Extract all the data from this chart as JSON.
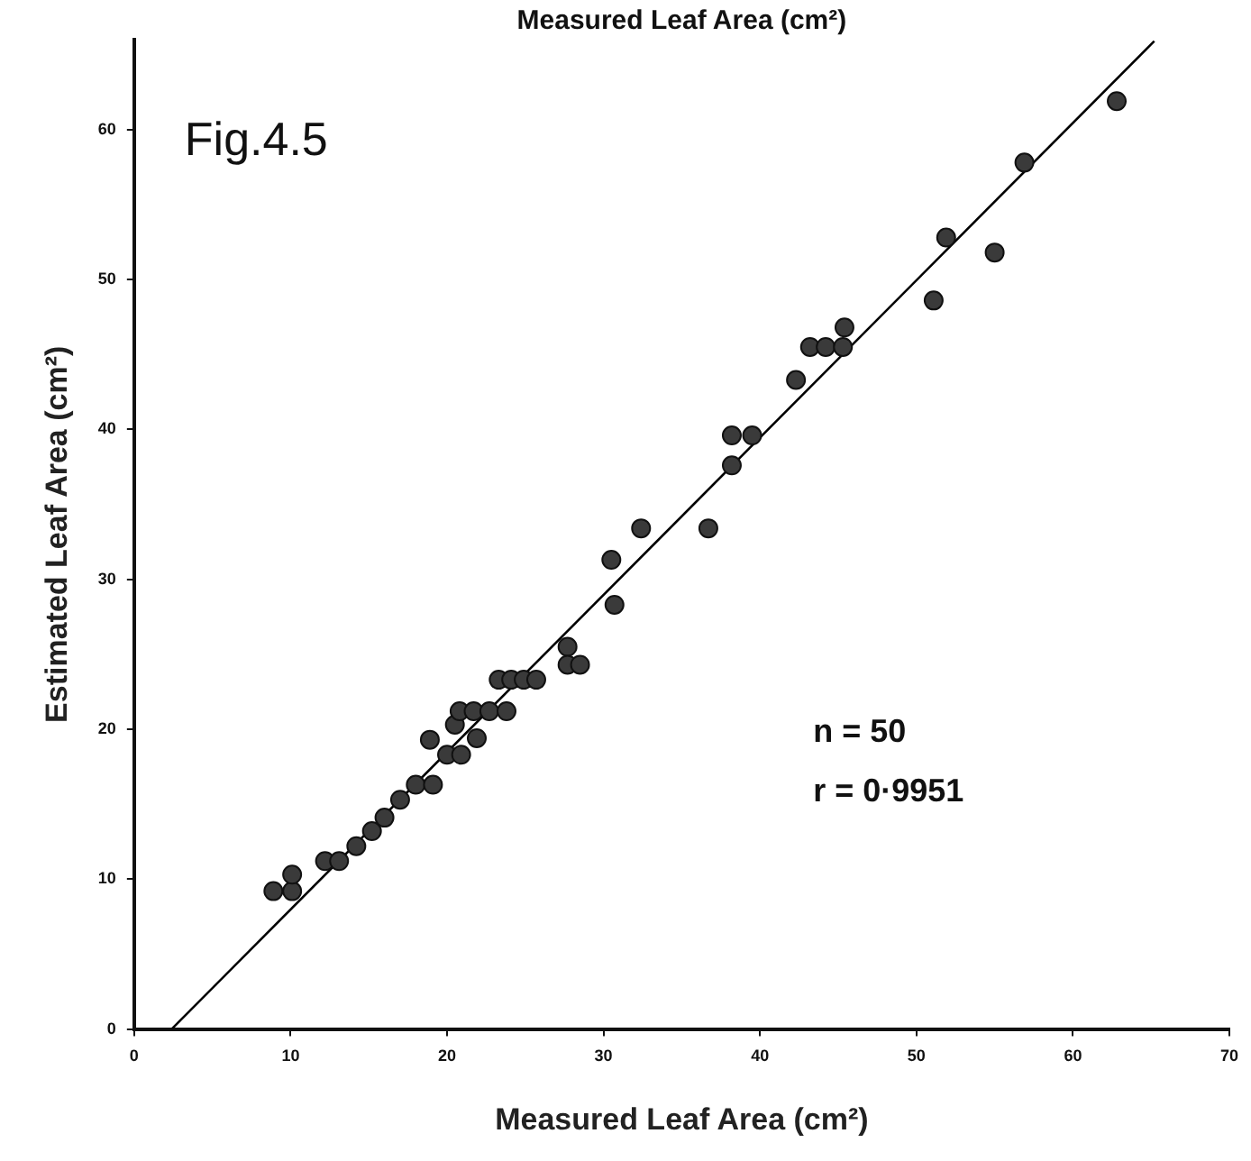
{
  "chart_data": {
    "type": "scatter",
    "title": "Fig.4.5",
    "xlabel": "Measured Leaf Area (cm²)",
    "ylabel": "Estimated Leaf Area (cm²)",
    "annotations": [
      "Measured Leaf Area (cm²)",
      "n = 50",
      "r = 0·9951"
    ],
    "xlim": [
      0,
      70
    ],
    "xticks": [
      0,
      10,
      20,
      30,
      40,
      50,
      60,
      70
    ],
    "ylim": [
      0,
      66
    ],
    "yticks": [
      0,
      10,
      20,
      30,
      40,
      50,
      60
    ],
    "grid": false,
    "legend": false,
    "series": [
      {
        "color": "#3a3a3a",
        "marker": "circle",
        "x": [
          8.9,
          10.1,
          10.1,
          12.2,
          13.1,
          14.2,
          15.2,
          16,
          17,
          18,
          19.1,
          18.9,
          20,
          20.9,
          21.9,
          20.5,
          20.8,
          21.7,
          22.7,
          23.8,
          23.3,
          24.1,
          24.9,
          25.7,
          27.7,
          27.7,
          28.5,
          30.7,
          30.5,
          32.4,
          36.7,
          38.2,
          38.2,
          39.5,
          42.3,
          43.2,
          44.2,
          45.3,
          45.4,
          51.1,
          51.9,
          55,
          56.9,
          62.8
        ],
        "values": [
          9.2,
          9.2,
          10.3,
          11.2,
          11.2,
          12.2,
          13.2,
          14.1,
          15.3,
          16.3,
          16.3,
          19.3,
          18.3,
          18.3,
          19.4,
          20.3,
          21.2,
          21.2,
          21.2,
          21.2,
          23.3,
          23.3,
          23.3,
          23.3,
          25.5,
          24.3,
          24.3,
          28.3,
          31.3,
          33.4,
          33.4,
          37.6,
          39.6,
          39.6,
          43.3,
          45.5,
          45.5,
          45.5,
          46.8,
          48.6,
          52.8,
          51.8,
          57.8,
          61.9
        ]
      },
      {
        "type": "line",
        "color": "#000000",
        "marker": "none",
        "x": [
          2.4,
          65.2
        ],
        "values": [
          0,
          65.9
        ]
      }
    ]
  }
}
